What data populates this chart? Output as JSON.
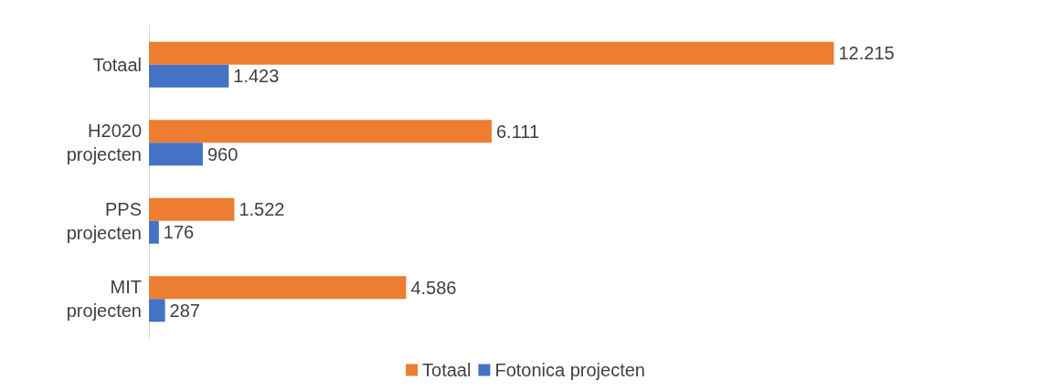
{
  "chart_data": {
    "type": "bar",
    "orientation": "horizontal",
    "categories": [
      "Totaal",
      "H2020\nprojecten",
      "PPS\nprojecten",
      "MIT\nprojecten"
    ],
    "series": [
      {
        "name": "Totaal",
        "color": "#ed7d31",
        "values": [
          12215,
          6111,
          1522,
          4586
        ],
        "value_labels": [
          "12.215",
          "6.111",
          "1.522",
          "4.586"
        ]
      },
      {
        "name": "Fotonica projecten",
        "color": "#4472c4",
        "values": [
          1423,
          960,
          176,
          287
        ],
        "value_labels": [
          "1.423",
          "960",
          "176",
          "287"
        ]
      }
    ],
    "legend": "bottom",
    "grid": false
  }
}
